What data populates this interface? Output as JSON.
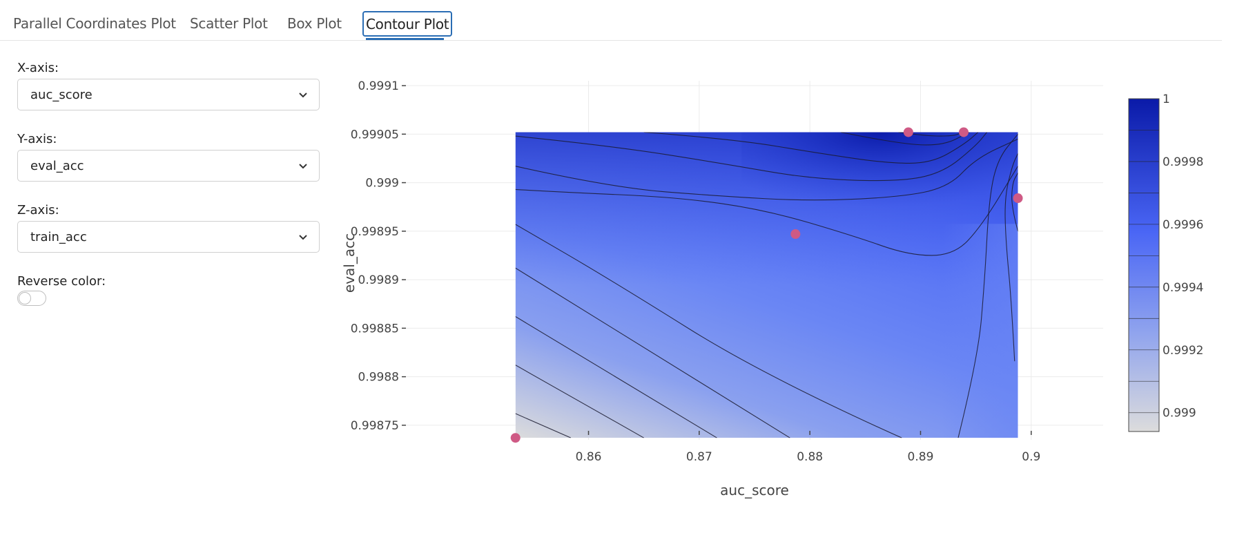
{
  "tabs": [
    {
      "label": "Parallel Coordinates Plot",
      "active": false
    },
    {
      "label": "Scatter Plot",
      "active": false
    },
    {
      "label": "Box Plot",
      "active": false
    },
    {
      "label": "Contour Plot",
      "active": true
    }
  ],
  "controls": {
    "x_axis": {
      "label": "X-axis:",
      "value": "auc_score"
    },
    "y_axis": {
      "label": "Y-axis:",
      "value": "eval_acc"
    },
    "z_axis": {
      "label": "Z-axis:",
      "value": "train_acc"
    },
    "reverse_color": {
      "label": "Reverse color:",
      "on": false
    },
    "icons": {
      "dropdown": "chevron-down-icon"
    }
  },
  "chart_data": {
    "type": "contour",
    "xlabel": "auc_score",
    "ylabel": "eval_acc",
    "xlim": [
      0.8435,
      0.9065
    ],
    "ylim": [
      0.998735,
      0.999105
    ],
    "x_ticks": [
      0.86,
      0.87,
      0.88,
      0.89,
      0.9
    ],
    "x_tick_labels": [
      "0.86",
      "0.87",
      "0.88",
      "0.89",
      "0.9"
    ],
    "y_ticks": [
      0.99875,
      0.9988,
      0.99885,
      0.9989,
      0.99895,
      0.999,
      0.99905,
      0.9991
    ],
    "y_tick_labels": [
      "0.99875",
      "0.9988",
      "0.99885",
      "0.9989",
      "0.99895",
      "0.999",
      "0.99905",
      "0.9991"
    ],
    "grid": true,
    "contour_x_range": [
      0.8534,
      0.8988
    ],
    "contour_y_range": [
      0.998737,
      0.999052
    ],
    "z_range": [
      0.99894,
      1.0
    ],
    "colorbar_ticks": [
      0.999,
      0.9992,
      0.9994,
      0.9996,
      0.9998,
      1
    ],
    "colorbar_tick_labels": [
      "0.999",
      "0.9992",
      "0.9994",
      "0.9996",
      "0.9998",
      "1"
    ],
    "colorscale": [
      "#dcdcdc",
      "#4a66f5",
      "#0a1aa8"
    ],
    "marker_color": "#cf5a85",
    "points": [
      {
        "x": 0.8534,
        "y": 0.998737
      },
      {
        "x": 0.8787,
        "y": 0.998947
      },
      {
        "x": 0.8889,
        "y": 0.999052
      },
      {
        "x": 0.8939,
        "y": 0.999052
      },
      {
        "x": 0.8988,
        "y": 0.998984
      }
    ],
    "contours": [
      [
        [
          0.8584,
          0.998737
        ],
        [
          0.8534,
          0.998762
        ]
      ],
      [
        [
          0.865,
          0.998737
        ],
        [
          0.8534,
          0.998812
        ]
      ],
      [
        [
          0.8716,
          0.998737
        ],
        [
          0.8534,
          0.998862
        ]
      ],
      [
        [
          0.8782,
          0.998737
        ],
        [
          0.8534,
          0.998912
        ]
      ],
      [
        [
          0.8883,
          0.998737
        ],
        [
          0.876,
          0.9988
        ],
        [
          0.862,
          0.9989
        ],
        [
          0.8534,
          0.998957
        ]
      ],
      [
        [
          0.8934,
          0.998737
        ],
        [
          0.8952,
          0.99882
        ],
        [
          0.8958,
          0.9989
        ],
        [
          0.8962,
          0.998985
        ],
        [
          0.897,
          0.999025
        ],
        [
          0.8988,
          0.99905
        ]
      ],
      [
        [
          0.8985,
          0.998816
        ],
        [
          0.8982,
          0.99888
        ],
        [
          0.8977,
          0.99894
        ],
        [
          0.8976,
          0.998985
        ],
        [
          0.8983,
          0.999018
        ],
        [
          0.8988,
          0.99903
        ]
      ],
      [
        [
          0.8988,
          0.99895
        ],
        [
          0.8982,
          0.998975
        ],
        [
          0.8983,
          0.999
        ],
        [
          0.8988,
          0.99901
        ]
      ],
      [
        [
          0.8534,
          0.998993
        ],
        [
          0.858,
          0.99899
        ],
        [
          0.868,
          0.998985
        ],
        [
          0.876,
          0.998972
        ],
        [
          0.884,
          0.998945
        ],
        [
          0.889,
          0.998925
        ],
        [
          0.893,
          0.998925
        ],
        [
          0.8955,
          0.998955
        ],
        [
          0.8988,
          0.999017
        ]
      ],
      [
        [
          0.8534,
          0.999017
        ],
        [
          0.862,
          0.998995
        ],
        [
          0.872,
          0.998986
        ],
        [
          0.88,
          0.998981
        ],
        [
          0.888,
          0.998985
        ],
        [
          0.8925,
          0.998995
        ],
        [
          0.895,
          0.999025
        ],
        [
          0.8988,
          0.999045
        ]
      ],
      [
        [
          0.8534,
          0.999048
        ],
        [
          0.862,
          0.999038
        ],
        [
          0.872,
          0.99902
        ],
        [
          0.88,
          0.999004
        ],
        [
          0.888,
          0.999001
        ],
        [
          0.892,
          0.99901
        ],
        [
          0.895,
          0.999038
        ],
        [
          0.896,
          0.999052
        ]
      ],
      [
        [
          0.865,
          0.999052
        ],
        [
          0.873,
          0.999045
        ],
        [
          0.881,
          0.99903
        ],
        [
          0.887,
          0.99902
        ],
        [
          0.891,
          0.99902
        ],
        [
          0.894,
          0.99904
        ],
        [
          0.8952,
          0.999052
        ]
      ],
      [
        [
          0.8828,
          0.999052
        ],
        [
          0.888,
          0.99904
        ],
        [
          0.892,
          0.999038
        ],
        [
          0.8944,
          0.999052
        ]
      ],
      [
        [
          0.888,
          0.999052
        ],
        [
          0.8905,
          0.999048
        ],
        [
          0.893,
          0.999048
        ],
        [
          0.8938,
          0.999052
        ]
      ]
    ]
  }
}
